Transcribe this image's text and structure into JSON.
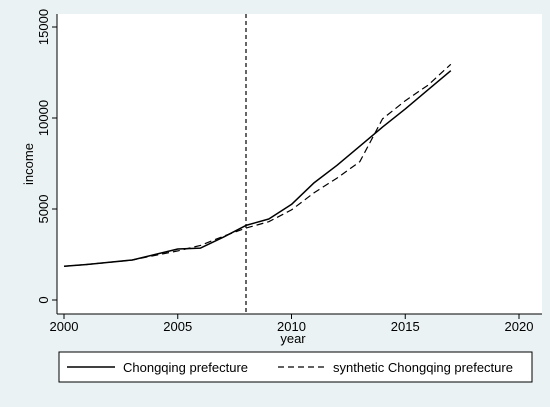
{
  "chart_data": {
    "type": "line",
    "title": "",
    "xlabel": "year",
    "ylabel": "income",
    "xlim": [
      2000,
      2020
    ],
    "ylim": [
      0,
      15000
    ],
    "x_ticks": [
      2000,
      2005,
      2010,
      2015,
      2020
    ],
    "y_ticks": [
      0,
      5000,
      10000,
      15000
    ],
    "grid": false,
    "legend_position": "bottom",
    "reference_line": {
      "x": 2008,
      "style": "dashed vertical"
    },
    "series": [
      {
        "name": "Chongqing prefecture",
        "style": "solid",
        "color": "#000000",
        "x": [
          2000,
          2001,
          2002,
          2003,
          2004,
          2005,
          2006,
          2007,
          2008,
          2009,
          2010,
          2011,
          2012,
          2013,
          2014,
          2015,
          2016,
          2017
        ],
        "y": [
          1850,
          1950,
          2070,
          2200,
          2500,
          2800,
          2850,
          3450,
          4100,
          4450,
          5250,
          6450,
          7400,
          8450,
          9500,
          10500,
          11550,
          12600
        ]
      },
      {
        "name": "synthetic Chongqing prefecture",
        "style": "dashed",
        "color": "#000000",
        "x": [
          2000,
          2001,
          2002,
          2003,
          2004,
          2005,
          2006,
          2007,
          2008,
          2009,
          2010,
          2011,
          2012,
          2013,
          2014,
          2015,
          2016,
          2017
        ],
        "y": [
          1850,
          1950,
          2070,
          2200,
          2450,
          2700,
          3000,
          3500,
          3950,
          4300,
          4950,
          5900,
          6700,
          7600,
          9950,
          10950,
          11800,
          12950
        ]
      }
    ]
  },
  "colors": {
    "background": "#eaf2f3",
    "plot_area": "#ffffff",
    "line": "#000000"
  }
}
